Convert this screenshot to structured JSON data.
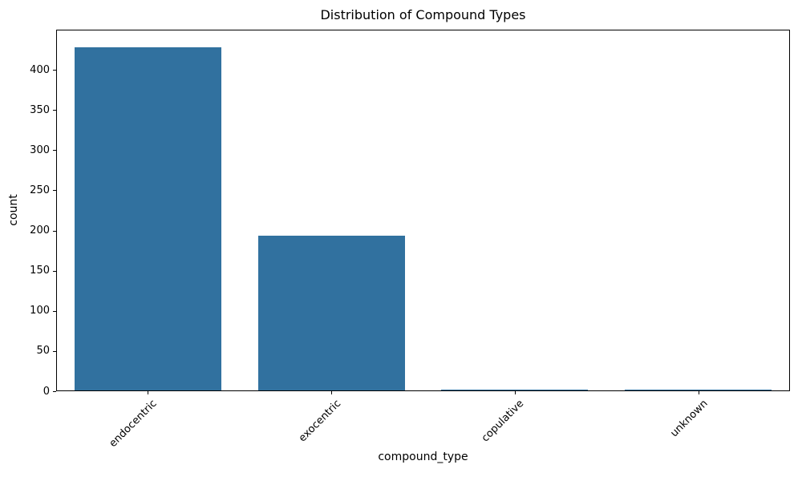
{
  "chart_data": {
    "type": "bar",
    "title": "Distribution of Compound Types",
    "xlabel": "compound_type",
    "ylabel": "count",
    "categories": [
      "endocentric",
      "exocentric",
      "copulative",
      "unknown"
    ],
    "values": [
      428,
      194,
      2,
      2
    ],
    "yticks": [
      0,
      50,
      100,
      150,
      200,
      250,
      300,
      350,
      400
    ],
    "ylim": [
      0,
      450
    ],
    "bar_color": "#31719F",
    "spine_color": "#000000",
    "text_color": "#000000",
    "background_color": "#ffffff",
    "grid": "off",
    "legend": "none",
    "xtick_label_rotation_deg": 45
  }
}
